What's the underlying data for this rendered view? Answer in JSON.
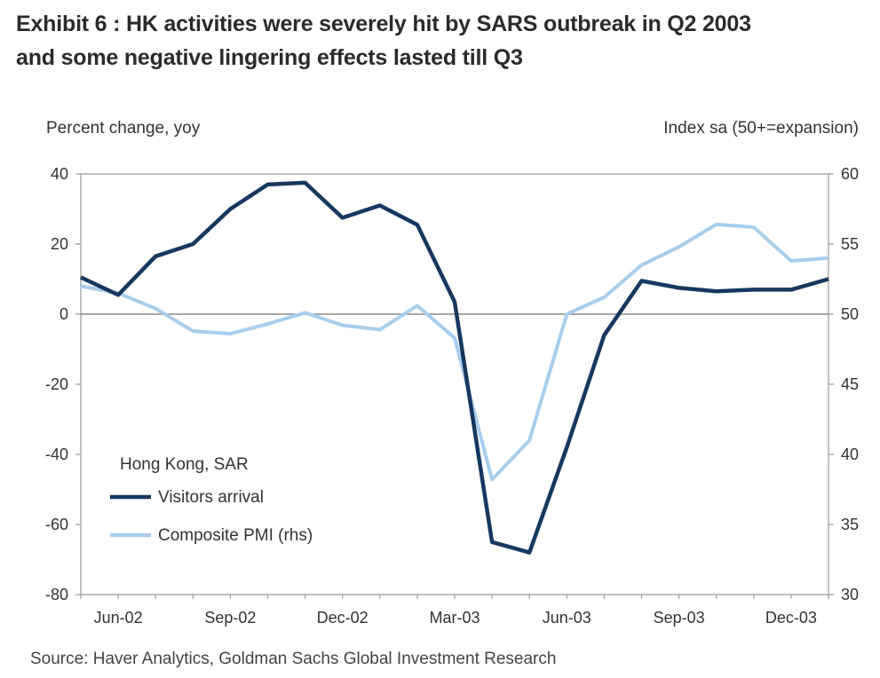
{
  "title_line1": "Exhibit 6 : HK activities were severely hit by SARS outbreak in Q2 2003",
  "title_line2": "and some negative lingering effects lasted till Q3",
  "source": "Source: Haver Analytics, Goldman Sachs Global Investment Research",
  "chart_data": {
    "type": "line",
    "x": [
      "May-02",
      "Jun-02",
      "Jul-02",
      "Aug-02",
      "Sep-02",
      "Oct-02",
      "Nov-02",
      "Dec-02",
      "Jan-03",
      "Feb-03",
      "Mar-03",
      "Apr-03",
      "May-03",
      "Jun-03",
      "Jul-03",
      "Aug-03",
      "Sep-03",
      "Oct-03",
      "Nov-03",
      "Dec-03",
      "Jan-04"
    ],
    "x_tick_labels": [
      "Jun-02",
      "Sep-02",
      "Dec-02",
      "Mar-03",
      "Jun-03",
      "Sep-03",
      "Dec-03"
    ],
    "ylabel_left": "Percent change, yoy",
    "ylabel_right": "Index sa (50+=expansion)",
    "ylim_left": [
      -80,
      40
    ],
    "ylim_right": [
      30,
      60
    ],
    "yticks_left": [
      "40",
      "20",
      "0",
      "-20",
      "-40",
      "-60",
      "-80"
    ],
    "yticks_right": [
      "60",
      "55",
      "50",
      "45",
      "40",
      "35",
      "30"
    ],
    "legend_title": "Hong Kong, SAR",
    "series": [
      {
        "name": "Visitors arrival",
        "axis": "left",
        "color": "#17375e",
        "values": [
          10.5,
          5.5,
          16.5,
          20,
          30,
          37,
          37.5,
          27.5,
          31,
          25.5,
          3.5,
          -65,
          -68,
          -38,
          -6,
          9.5,
          7.5,
          6.5,
          7,
          7,
          10
        ]
      },
      {
        "name": "Composite PMI (rhs)",
        "axis": "right",
        "color": "#a9cdec",
        "values": [
          52,
          51.5,
          50.4,
          48.8,
          48.6,
          49.3,
          50.1,
          49.2,
          48.9,
          50.6,
          48.3,
          38.2,
          41,
          50,
          51.2,
          53.5,
          54.8,
          56.4,
          56.2,
          53.8,
          54
        ]
      }
    ]
  }
}
